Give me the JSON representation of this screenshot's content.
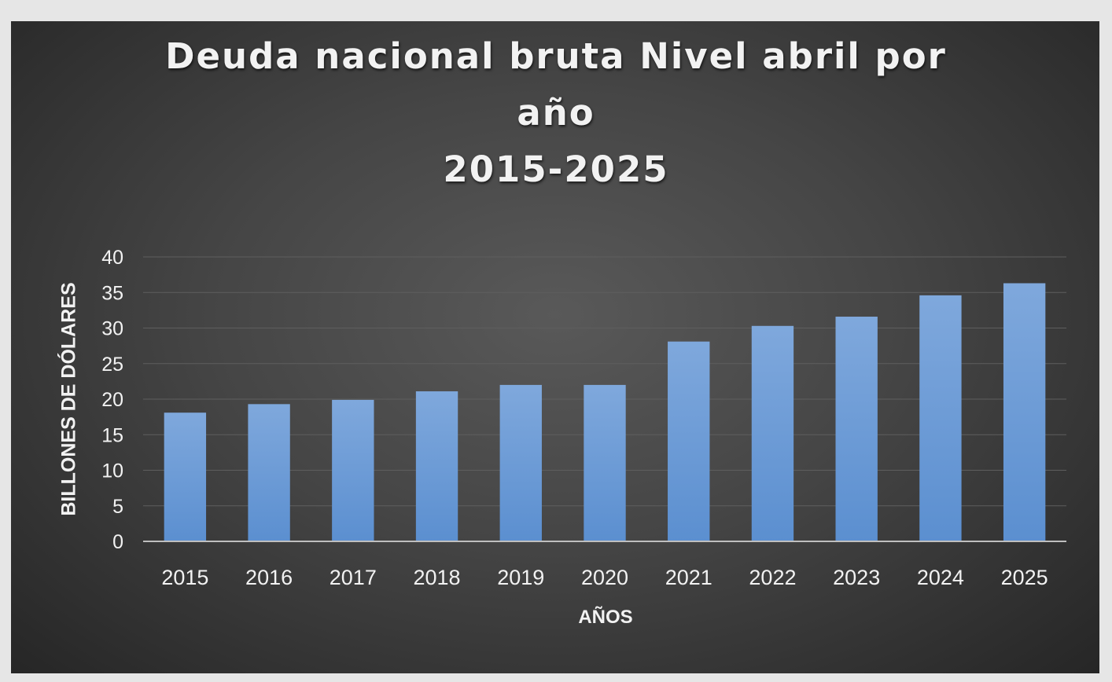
{
  "colors": {
    "background": "#3f3f3f",
    "bar": "#5b8fd0",
    "bar_top": "#7fa8dc",
    "text": "#f2f2f2",
    "gridline": "#5e5e5e",
    "axis_line": "#bfbfbf"
  },
  "chart_data": {
    "type": "bar",
    "title_lines": [
      "Deuda nacional bruta Nivel abril por",
      "año",
      "2015-2025"
    ],
    "xlabel": "AÑOS",
    "ylabel": "BILLONES DE DÓLARES",
    "categories": [
      "2015",
      "2016",
      "2017",
      "2018",
      "2019",
      "2020",
      "2021",
      "2022",
      "2023",
      "2024",
      "2025"
    ],
    "values": [
      18.1,
      19.3,
      19.9,
      21.1,
      22.0,
      22.0,
      28.1,
      30.3,
      31.6,
      34.6,
      36.3
    ],
    "ylim": [
      0,
      40
    ],
    "yticks": [
      "0",
      "5",
      "10",
      "15",
      "20",
      "25",
      "30",
      "35",
      "40"
    ],
    "grid": true,
    "legend": "none"
  }
}
